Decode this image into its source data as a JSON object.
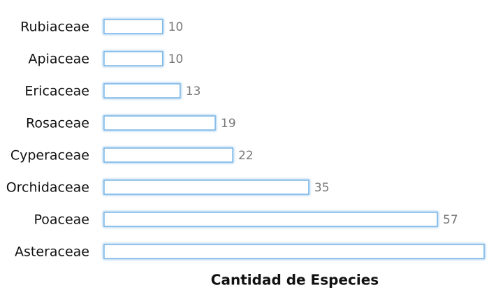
{
  "chart_data": {
    "type": "bar",
    "orientation": "horizontal",
    "x_label": "Cantidad de Especies",
    "categories": [
      "Rubiaceae",
      "Apiaceae",
      "Ericaceae",
      "Rosaceae",
      "Cyperaceae",
      "Orchidaceae",
      "Poaceae",
      "Asteraceae"
    ],
    "values": [
      10,
      10,
      13,
      19,
      22,
      35,
      57,
      65
    ],
    "color": "#7ab6e6",
    "xlim": [
      0,
      65
    ]
  }
}
